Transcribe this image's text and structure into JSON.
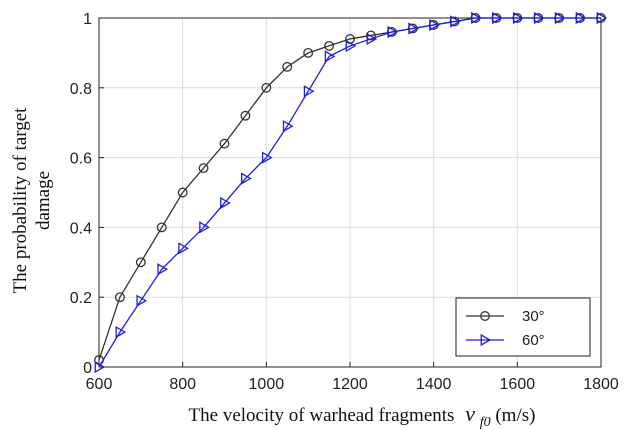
{
  "chart_data": {
    "type": "line",
    "title": "",
    "xlabel": "The velocity of warhead fragments",
    "xlabel_symbol": "v",
    "xlabel_subscript": "f0",
    "xlabel_unit": "(m/s)",
    "ylabel_line1": "The probability of target",
    "ylabel_line2": "damage",
    "xlim": [
      600,
      1800
    ],
    "ylim": [
      0,
      1
    ],
    "xticks": [
      600,
      800,
      1000,
      1200,
      1400,
      1600,
      1800
    ],
    "yticks": [
      0,
      0.2,
      0.4,
      0.6,
      0.8,
      1
    ],
    "xtick_labels": [
      "600",
      "800",
      "1000",
      "1200",
      "1400",
      "1600",
      "1800"
    ],
    "ytick_labels": [
      "0",
      "0.2",
      "0.4",
      "0.6",
      "0.8",
      "1"
    ],
    "grid": true,
    "legend_position": "bottom-right",
    "x": [
      600,
      650,
      700,
      750,
      800,
      850,
      900,
      950,
      1000,
      1050,
      1100,
      1150,
      1200,
      1250,
      1300,
      1350,
      1400,
      1450,
      1500,
      1550,
      1600,
      1650,
      1700,
      1750,
      1800
    ],
    "series": [
      {
        "name": "30°",
        "color": "#333333",
        "marker": "circle",
        "values": [
          0.02,
          0.2,
          0.3,
          0.4,
          0.5,
          0.57,
          0.64,
          0.72,
          0.8,
          0.86,
          0.9,
          0.92,
          0.94,
          0.95,
          0.96,
          0.97,
          0.98,
          0.99,
          1.0,
          1.0,
          1.0,
          1.0,
          1.0,
          1.0,
          1.0
        ]
      },
      {
        "name": "60°",
        "color": "#1f1fd6",
        "marker": "triangle-right",
        "values": [
          0.0,
          0.1,
          0.19,
          0.28,
          0.34,
          0.4,
          0.47,
          0.54,
          0.6,
          0.69,
          0.79,
          0.89,
          0.92,
          0.94,
          0.96,
          0.97,
          0.98,
          0.99,
          1.0,
          1.0,
          1.0,
          1.0,
          1.0,
          1.0,
          1.0
        ]
      }
    ]
  }
}
